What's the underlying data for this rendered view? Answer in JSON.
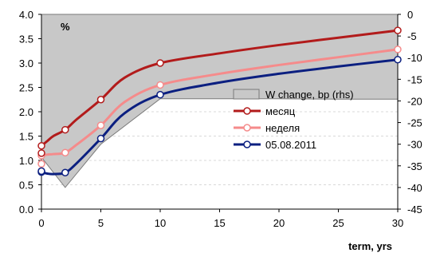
{
  "chart_data": {
    "type": "line",
    "unit_label": "%",
    "xlabel": "term, yrs",
    "x_ticks": [
      0,
      5,
      10,
      15,
      20,
      25,
      30
    ],
    "y_left": {
      "ticks": [
        0.0,
        0.5,
        1.0,
        1.5,
        2.0,
        2.5,
        3.0,
        3.5,
        4.0
      ],
      "lim": [
        0,
        4
      ],
      "labels": [
        "0.0",
        "0.5",
        "1.0",
        "1.5",
        "2.0",
        "2.5",
        "3.0",
        "3.5",
        "4.0"
      ]
    },
    "y_right": {
      "ticks": [
        0,
        -5,
        -10,
        -15,
        -20,
        -25,
        -30,
        -35,
        -40,
        -45
      ],
      "lim": [
        -45,
        0
      ],
      "labels": [
        "0",
        "-5",
        "-10",
        "-15",
        "-20",
        "-25",
        "-30",
        "-35",
        "-40",
        "-45"
      ]
    },
    "area_series": {
      "name": "W change, bp (rhs)",
      "axis": "right",
      "color": "#c8c8c8",
      "x": [
        0,
        2,
        5,
        10,
        15,
        20,
        25,
        30
      ],
      "values": [
        -33,
        -40,
        -30,
        -19.5,
        -19.5,
        -19.5,
        -19.6,
        -19.6
      ]
    },
    "series": [
      {
        "name": "месяц",
        "color": "#b21b1b",
        "axis": "left",
        "x": [
          0,
          0.5,
          1,
          2,
          3,
          5,
          7,
          10,
          15,
          20,
          25,
          30
        ],
        "values": [
          1.3,
          1.4,
          1.5,
          1.63,
          1.85,
          2.25,
          2.7,
          3.0,
          3.2,
          3.37,
          3.52,
          3.67
        ],
        "markers_at": [
          0,
          2,
          5,
          10,
          30
        ]
      },
      {
        "name": "неделя",
        "color": "#f58b8b",
        "axis": "left",
        "x": [
          0,
          0.5,
          1,
          2,
          3,
          5,
          7,
          10,
          15,
          20,
          25,
          30
        ],
        "values": [
          1.1,
          1.12,
          1.13,
          1.16,
          1.33,
          1.72,
          2.2,
          2.55,
          2.78,
          2.96,
          3.12,
          3.28
        ],
        "markers_at": [
          0,
          2,
          5,
          10,
          30
        ]
      },
      {
        "name": "05.08.2011",
        "color": "#0b1f80",
        "axis": "left",
        "x": [
          0,
          0.5,
          1,
          2,
          3,
          5,
          7,
          10,
          15,
          20,
          25,
          30
        ],
        "values": [
          0.76,
          0.73,
          0.72,
          0.75,
          0.95,
          1.45,
          1.97,
          2.35,
          2.6,
          2.78,
          2.93,
          3.07
        ],
        "markers_at": [
          0,
          2,
          5,
          10,
          30
        ]
      }
    ],
    "extra_points": [
      {
        "series": 0,
        "x": 0,
        "value": 1.15
      },
      {
        "series": 1,
        "x": 0,
        "value": 0.93
      },
      {
        "series": 2,
        "x": 0,
        "value": 0.78
      }
    ],
    "legend": {
      "placement": "right-middle"
    }
  }
}
